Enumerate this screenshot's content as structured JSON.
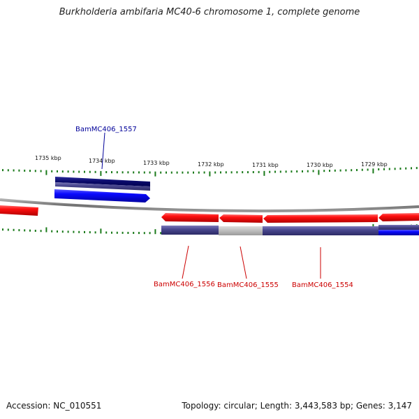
{
  "title": "Burkholderia ambifaria MC40-6 chromosome 1, complete genome",
  "scale_labels": [
    "1735 kbp",
    "1734 kbp",
    "1733 kbp",
    "1732 kbp",
    "1731 kbp",
    "1730 kbp",
    "1729 kbp"
  ],
  "genes": [
    {
      "name": "BamMC406_1557",
      "color": "#000099"
    },
    {
      "name": "BamMC406_1556",
      "color": "#cc0000"
    },
    {
      "name": "BamMC406_1555",
      "color": "#cc0000"
    },
    {
      "name": "BamMC406_1554",
      "color": "#cc0000"
    }
  ],
  "footer": {
    "accession": "Accession: NC_010551",
    "stats": "Topology: circular; Length: 3,443,583 bp; Genes: 3,147"
  },
  "colors": {
    "forward_strand": "#ee1111",
    "reverse_strand": "#1111dd",
    "cds_dark": "#3d3a80",
    "cds_gray": "#bbbbbb",
    "tick": "#1a7a1a",
    "backbone": "#8a8a8a"
  }
}
